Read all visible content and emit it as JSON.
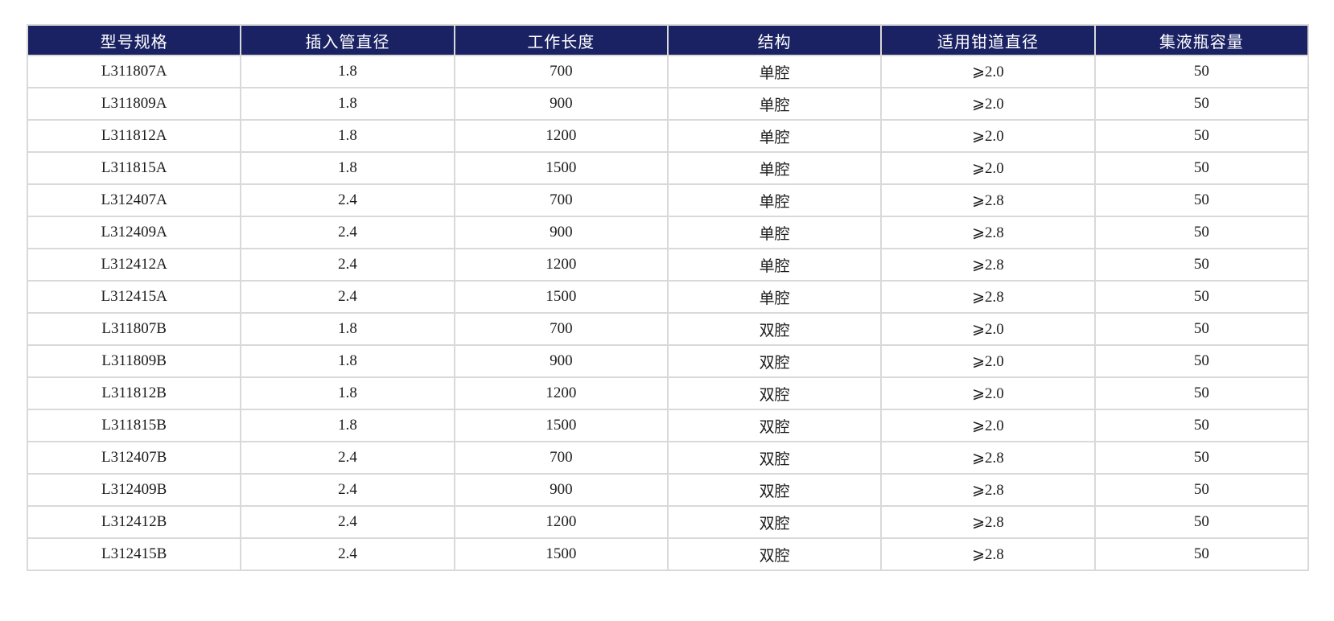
{
  "table": {
    "name": "product-specification-table",
    "columns": [
      {
        "key": "model",
        "label": "型号规格"
      },
      {
        "key": "insertion-tube-diameter",
        "label": "插入管直径"
      },
      {
        "key": "working-length",
        "label": "工作长度"
      },
      {
        "key": "structure",
        "label": "结构"
      },
      {
        "key": "channel-diameter",
        "label": "适用钳道直径"
      },
      {
        "key": "bottle-capacity",
        "label": "集液瓶容量"
      }
    ],
    "rows": [
      [
        "L311807A",
        "1.8",
        "700",
        "单腔",
        "⩾2.0",
        "50"
      ],
      [
        "L311809A",
        "1.8",
        "900",
        "单腔",
        "⩾2.0",
        "50"
      ],
      [
        "L311812A",
        "1.8",
        "1200",
        "单腔",
        "⩾2.0",
        "50"
      ],
      [
        "L311815A",
        "1.8",
        "1500",
        "单腔",
        "⩾2.0",
        "50"
      ],
      [
        "L312407A",
        "2.4",
        "700",
        "单腔",
        "⩾2.8",
        "50"
      ],
      [
        "L312409A",
        "2.4",
        "900",
        "单腔",
        "⩾2.8",
        "50"
      ],
      [
        "L312412A",
        "2.4",
        "1200",
        "单腔",
        "⩾2.8",
        "50"
      ],
      [
        "L312415A",
        "2.4",
        "1500",
        "单腔",
        "⩾2.8",
        "50"
      ],
      [
        "L311807B",
        "1.8",
        "700",
        "双腔",
        "⩾2.0",
        "50"
      ],
      [
        "L311809B",
        "1.8",
        "900",
        "双腔",
        "⩾2.0",
        "50"
      ],
      [
        "L311812B",
        "1.8",
        "1200",
        "双腔",
        "⩾2.0",
        "50"
      ],
      [
        "L311815B",
        "1.8",
        "1500",
        "双腔",
        "⩾2.0",
        "50"
      ],
      [
        "L312407B",
        "2.4",
        "700",
        "双腔",
        "⩾2.8",
        "50"
      ],
      [
        "L312409B",
        "2.4",
        "900",
        "双腔",
        "⩾2.8",
        "50"
      ],
      [
        "L312412B",
        "2.4",
        "1200",
        "双腔",
        "⩾2.8",
        "50"
      ],
      [
        "L312415B",
        "2.4",
        "1500",
        "双腔",
        "⩾2.8",
        "50"
      ]
    ]
  },
  "colors": {
    "header_bg": "#1b2264",
    "header_text": "#ffffff",
    "cell_text": "#1a1a1a",
    "border": "#d9d9d9",
    "page_bg": "#ffffff"
  }
}
